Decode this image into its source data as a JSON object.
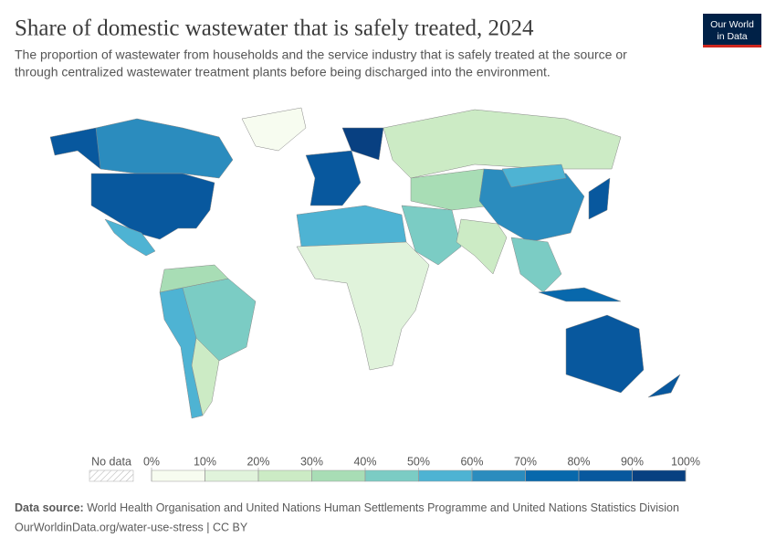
{
  "header": {
    "title": "Share of domestic wastewater that is safely treated, 2024",
    "subtitle_lines": [
      "The proportion of wastewater from households and the service industry that is safely treated at the source or",
      "through centralized wastewater treatment plants before being discharged into the environment."
    ],
    "logo_lines": [
      "Our World",
      "in Data"
    ]
  },
  "chart_data": {
    "type": "choropleth",
    "regions": {
      "values": [
        65,
        88,
        88,
        5,
        55,
        40,
        55,
        25,
        30,
        85,
        90,
        25,
        55,
        15,
        40,
        30,
        65,
        20,
        40,
        85,
        75,
        88,
        88,
        55
      ]
    },
    "legend": {
      "no_data_label": "No data",
      "ticks": [
        {
          "value": 0,
          "label": "0%"
        },
        {
          "value": 10,
          "label": "10%"
        },
        {
          "value": 20,
          "label": "20%"
        },
        {
          "value": 30,
          "label": "30%"
        },
        {
          "value": 40,
          "label": "40%"
        },
        {
          "value": 50,
          "label": "50%"
        },
        {
          "value": 60,
          "label": "60%"
        },
        {
          "value": 70,
          "label": "70%"
        },
        {
          "value": 80,
          "label": "80%"
        },
        {
          "value": 90,
          "label": "90%"
        },
        {
          "value": 100,
          "label": "100%"
        }
      ],
      "colors": [
        "#f7fcf0",
        "#e0f3db",
        "#ccebc5",
        "#a8ddb5",
        "#7bccc4",
        "#4eb3d3",
        "#2b8cbe",
        "#0868ac",
        "#08589e",
        "#084081"
      ]
    }
  },
  "footer": {
    "source_label": "Data source:",
    "source": "World Health Organisation and United Nations Human Settlements Programme and United Nations Statistics Division",
    "url": "OurWorldinData.org/water-use-stress | CC BY"
  }
}
